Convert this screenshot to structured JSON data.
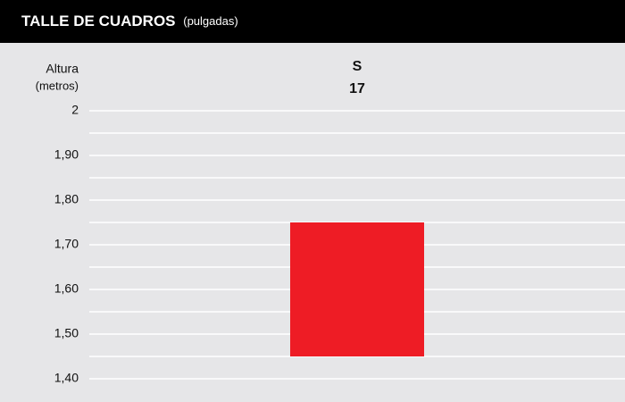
{
  "chart_data": {
    "type": "range_bar",
    "title": "TALLE DE CUADROS",
    "subtitle": "(pulgadas)",
    "ylabel": "Altura",
    "ylabel_unit": "(metros)",
    "categories": [
      "S"
    ],
    "sizes": [
      "17"
    ],
    "low": [
      1.45
    ],
    "high": [
      1.75
    ],
    "color": "#ee1c25",
    "ylim": [
      1.4,
      2
    ],
    "yticks": [
      {
        "value": 1.4,
        "label": "1,40"
      },
      {
        "value": 1.5,
        "label": "1,50"
      },
      {
        "value": 1.6,
        "label": "1,60"
      },
      {
        "value": 1.7,
        "label": "1,70"
      },
      {
        "value": 1.8,
        "label": "1,80"
      },
      {
        "value": 1.9,
        "label": "1,90"
      },
      2
    ],
    "minor_yticks": [
      1.45,
      1.55,
      1.65,
      1.75,
      1.85,
      1.95
    ],
    "grid": true
  }
}
